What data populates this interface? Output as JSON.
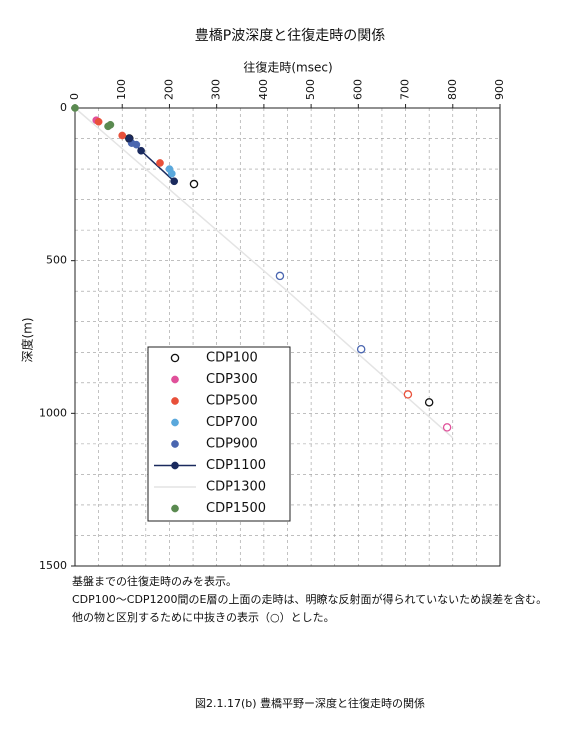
{
  "chart_data": {
    "type": "scatter",
    "title": "豊橋P波深度と往復走時の関係",
    "x_label": "往復走時(msec)",
    "y_label": "深度(m)",
    "xlim": [
      0,
      900
    ],
    "ylim": [
      0,
      1500
    ],
    "y_inverted": true,
    "xticks": [
      0,
      100,
      200,
      300,
      400,
      500,
      600,
      700,
      800,
      900
    ],
    "yticks": [
      0,
      500,
      1000,
      1500
    ],
    "xgrid": [
      50,
      100,
      150,
      200,
      250,
      300,
      350,
      400,
      450,
      500,
      550,
      600,
      650,
      700,
      750,
      800,
      850
    ],
    "ygrid": [
      100,
      200,
      300,
      400,
      500,
      600,
      700,
      800,
      900,
      1000,
      1100,
      1200,
      1300,
      1400
    ],
    "series": [
      {
        "name": "CDP100",
        "color": "#111111",
        "open": [
          true,
          true,
          true
        ],
        "x": [
          115,
          252,
          750
        ],
        "values": [
          100,
          249,
          964
        ]
      },
      {
        "name": "CDP300",
        "color": "#e0509a",
        "open": [
          false,
          true
        ],
        "x": [
          45,
          788
        ],
        "values": [
          40,
          1046
        ]
      },
      {
        "name": "CDP500",
        "color": "#e8503a",
        "open": [
          false,
          false,
          false,
          true
        ],
        "x": [
          50,
          100,
          180,
          705
        ],
        "values": [
          45,
          90,
          180,
          938
        ]
      },
      {
        "name": "CDP700",
        "color": "#5aa8dc",
        "open": [
          false,
          false
        ],
        "x": [
          200,
          205
        ],
        "values": [
          200,
          215
        ]
      },
      {
        "name": "CDP900",
        "color": "#4a66b0",
        "open": [
          false,
          false,
          true,
          true
        ],
        "x": [
          120,
          130,
          434,
          606
        ],
        "values": [
          115,
          120,
          550,
          790
        ]
      },
      {
        "name": "CDP1100",
        "color": "#1a2a5e",
        "line": true,
        "open": [
          false,
          false,
          false
        ],
        "x": [
          115,
          140,
          210
        ],
        "values": [
          100,
          140,
          240
        ]
      },
      {
        "name": "CDP1300",
        "color": "#e4e4e4",
        "line": true,
        "open": [
          false,
          false,
          false
        ],
        "x": [
          0,
          450,
          800
        ],
        "values": [
          0,
          600,
          1080
        ]
      },
      {
        "name": "CDP1500",
        "color": "#5a8a50",
        "open": [
          false,
          false,
          false
        ],
        "x": [
          0,
          70,
          75
        ],
        "values": [
          0,
          60,
          55
        ]
      }
    ]
  },
  "notes": [
    "基盤までの往復走時のみを表示。",
    "CDP100～CDP1200間のE層の上面の走時は、明瞭な反射面が得られていないため誤差を含む。",
    "他の物と区別するために中抜きの表示（○）とした。"
  ],
  "caption": "図2.1.17(b)  豊橋平野ー深度と往復走時の関係"
}
